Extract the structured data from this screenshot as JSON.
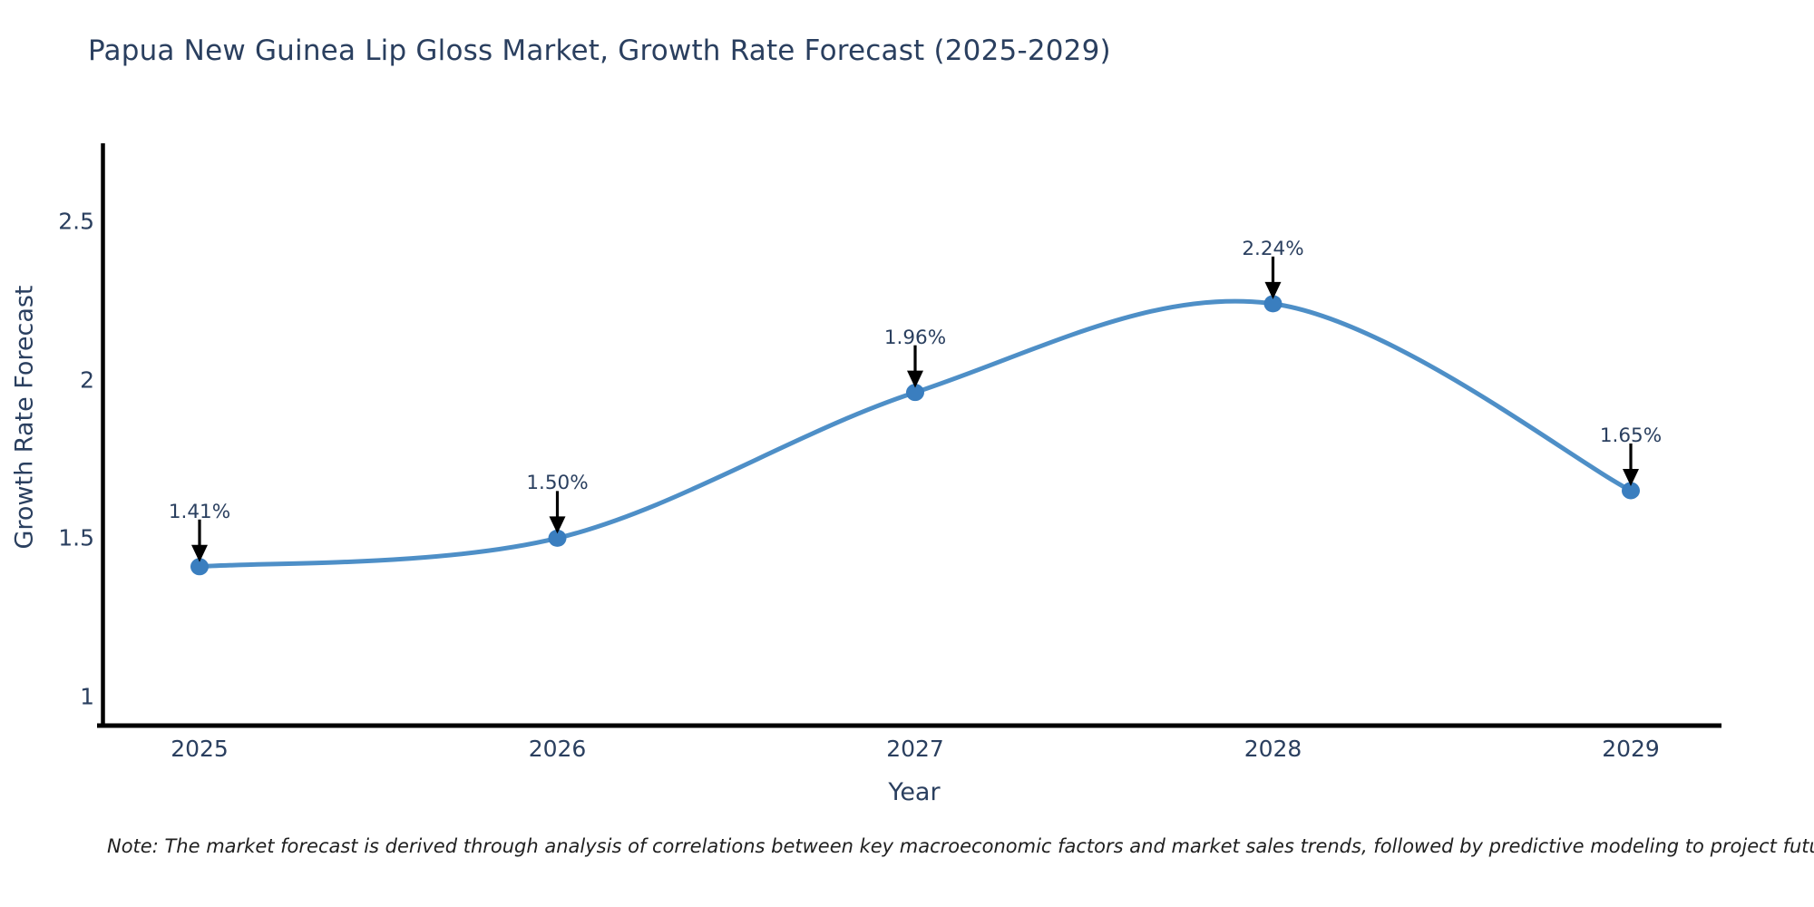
{
  "title": "Papua New Guinea Lip Gloss Market, Growth Rate Forecast (2025-2029)",
  "note": "Note: The market forecast is derived through analysis of correlations between key macroeconomic factors and market sales trends, followed by predictive modeling to project future sales",
  "chart_data": {
    "type": "line",
    "line_shape": "spline",
    "x": [
      2025,
      2026,
      2027,
      2028,
      2029
    ],
    "y": [
      1.41,
      1.5,
      1.96,
      2.24,
      1.65
    ],
    "point_labels": [
      "1.41%",
      "1.50%",
      "1.96%",
      "2.24%",
      "1.65%"
    ],
    "title": "Papua New Guinea Lip Gloss Market, Growth Rate Forecast (2025-2029)",
    "xlabel": "Year",
    "ylabel": "Growth Rate Forecast",
    "xticks": [
      "2025",
      "2026",
      "2027",
      "2028",
      "2029"
    ],
    "yticks": [
      "1",
      "1.5",
      "2",
      "2.5"
    ],
    "ytick_values": [
      1,
      1.5,
      2,
      2.5
    ],
    "ylim": [
      0.9,
      2.75
    ],
    "grid": false,
    "legend": "none",
    "colors": {
      "line": "#4e8fc7",
      "marker": "#3a7ebf",
      "axis": "#000000",
      "text": "#2a3f5f",
      "arrow": "#000000"
    }
  }
}
